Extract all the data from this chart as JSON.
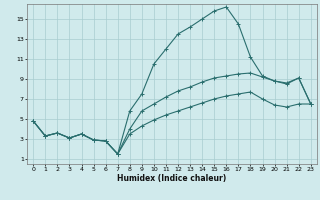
{
  "background_color": "#d0eaec",
  "grid_color": "#a8cdd0",
  "line_color": "#2a6e6e",
  "xlabel": "Humidex (Indice chaleur)",
  "xlim": [
    -0.5,
    23.5
  ],
  "ylim": [
    0.5,
    16.5
  ],
  "xticks": [
    0,
    1,
    2,
    3,
    4,
    5,
    6,
    7,
    8,
    9,
    10,
    11,
    12,
    13,
    14,
    15,
    16,
    17,
    18,
    19,
    20,
    21,
    22,
    23
  ],
  "yticks": [
    1,
    3,
    5,
    7,
    9,
    11,
    13,
    15
  ],
  "curve1_x": [
    0,
    1,
    2,
    3,
    4,
    5,
    6,
    7,
    8,
    9,
    10,
    11,
    12,
    13,
    14,
    15,
    16,
    17,
    18,
    19,
    20,
    21,
    22,
    23
  ],
  "curve1_y": [
    4.8,
    3.3,
    3.6,
    3.1,
    3.5,
    2.9,
    2.8,
    1.5,
    5.8,
    7.5,
    10.5,
    12.0,
    13.5,
    14.2,
    15.0,
    15.8,
    16.2,
    14.5,
    11.2,
    9.3,
    8.8,
    8.6,
    9.1,
    6.5
  ],
  "curve2_x": [
    0,
    1,
    2,
    3,
    4,
    5,
    6,
    7,
    8,
    9,
    10,
    11,
    12,
    13,
    14,
    15,
    16,
    17,
    18,
    19,
    20,
    21,
    22,
    23
  ],
  "curve2_y": [
    4.8,
    3.3,
    3.6,
    3.1,
    3.5,
    2.9,
    2.8,
    1.5,
    4.0,
    5.8,
    6.5,
    7.2,
    7.8,
    8.2,
    8.7,
    9.1,
    9.3,
    9.5,
    9.6,
    9.2,
    8.8,
    8.5,
    9.1,
    6.5
  ],
  "curve3_x": [
    0,
    1,
    2,
    3,
    4,
    5,
    6,
    7,
    8,
    9,
    10,
    11,
    12,
    13,
    14,
    15,
    16,
    17,
    18,
    19,
    20,
    21,
    22,
    23
  ],
  "curve3_y": [
    4.8,
    3.3,
    3.6,
    3.1,
    3.5,
    2.9,
    2.8,
    1.5,
    3.5,
    4.3,
    4.9,
    5.4,
    5.8,
    6.2,
    6.6,
    7.0,
    7.3,
    7.5,
    7.7,
    7.0,
    6.4,
    6.2,
    6.5,
    6.5
  ]
}
